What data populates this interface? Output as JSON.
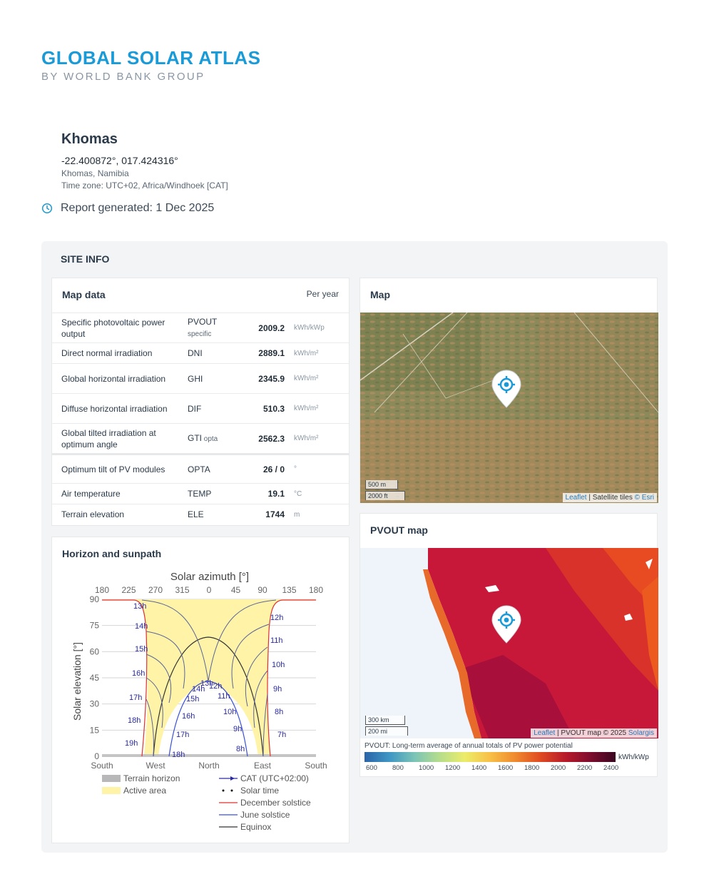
{
  "brand": {
    "title": "GLOBAL SOLAR ATLAS",
    "subtitle": "BY WORLD BANK GROUP"
  },
  "site": {
    "name": "Khomas",
    "coords": "-22.400872°, 017.424316°",
    "location": "Khomas, Namibia",
    "timezone": "Time zone: UTC+02, Africa/Windhoek [CAT]"
  },
  "report": {
    "text": "Report generated: 1 Dec 2025",
    "icon": "clock-icon",
    "icon_color": "#1a9ad6"
  },
  "site_info": {
    "title": "SITE INFO"
  },
  "map_data": {
    "title": "Map data",
    "period": "Per year",
    "rows": [
      {
        "label": "Specific photovoltaic power output",
        "abbr": "PVOUT",
        "abbr_sub": "specific",
        "value": "2009.2",
        "unit": "kWh/kWp"
      },
      {
        "label": "Direct normal irradiation",
        "abbr": "DNI",
        "abbr_sub": "",
        "value": "2889.1",
        "unit": "kWh/m²"
      },
      {
        "label": "Global horizontal irradiation",
        "abbr": "GHI",
        "abbr_sub": "",
        "value": "2345.9",
        "unit": "kWh/m²"
      },
      {
        "label": "Diffuse horizontal irradiation",
        "abbr": "DIF",
        "abbr_sub": "",
        "value": "510.3",
        "unit": "kWh/m²"
      },
      {
        "label": "Global tilted irradiation at optimum angle",
        "abbr": "GTI",
        "abbr_sub": "opta",
        "value": "2562.3",
        "unit": "kWh/m²"
      },
      {
        "label": "Optimum tilt of PV modules",
        "abbr": "OPTA",
        "abbr_sub": "",
        "value": "26 / 0",
        "unit": "°"
      },
      {
        "label": "Air temperature",
        "abbr": "TEMP",
        "abbr_sub": "",
        "value": "19.1",
        "unit": "°C"
      },
      {
        "label": "Terrain elevation",
        "abbr": "ELE",
        "abbr_sub": "",
        "value": "1744",
        "unit": "m"
      }
    ]
  },
  "map": {
    "title": "Map",
    "scale_m": "500 m",
    "scale_ft": "2000 ft",
    "attrib_link": "Leaflet",
    "attrib_text": " | Satellite tiles ",
    "attrib_link2": "© Esri"
  },
  "pvout_map": {
    "title": "PVOUT map",
    "scale_km": "300 km",
    "scale_mi": "200 mi",
    "attrib_link": "Leaflet",
    "attrib_text": " | PVOUT map © 2025 ",
    "attrib_link2": "Solargis",
    "legend_title": "PVOUT: Long-term average of annual totals of PV power potential",
    "legend_unit": "kWh/kWp",
    "legend_ticks": [
      "600",
      "800",
      "1000",
      "1200",
      "1400",
      "1600",
      "1800",
      "2000",
      "2200",
      "2400"
    ]
  },
  "horizon": {
    "title": "Horizon and sunpath",
    "chart_title": "Solar azimuth [°]",
    "ylabel": "Solar elevation [°]",
    "top_ticks": [
      "180",
      "225",
      "270",
      "315",
      "0",
      "45",
      "90",
      "135",
      "180"
    ],
    "bottom_ticks": [
      "South",
      "West",
      "North",
      "East",
      "South"
    ],
    "y_ticks": [
      "0",
      "15",
      "30",
      "45",
      "60",
      "75",
      "90"
    ],
    "hour_labels_summer": [
      "13h",
      "14h",
      "15h",
      "16h",
      "17h",
      "18h",
      "19h",
      "12h",
      "11h",
      "10h",
      "9h",
      "8h",
      "7h"
    ],
    "hour_labels_winter": [
      "13h",
      "12h",
      "14h",
      "11h",
      "15h",
      "10h",
      "16h",
      "9h",
      "17h",
      "18h",
      "8h"
    ],
    "legend": [
      {
        "name": "Terrain horizon",
        "color": "#b8b8b8"
      },
      {
        "name": "Active area",
        "color": "#fff3a8"
      },
      {
        "name": "CAT (UTC+02:00)",
        "color": "#2a2aa8"
      },
      {
        "name": "Solar time",
        "color": "#111111"
      },
      {
        "name": "December solstice",
        "color": "#e03030"
      },
      {
        "name": "June solstice",
        "color": "#3a50d8"
      },
      {
        "name": "Equinox",
        "color": "#333333"
      }
    ]
  }
}
